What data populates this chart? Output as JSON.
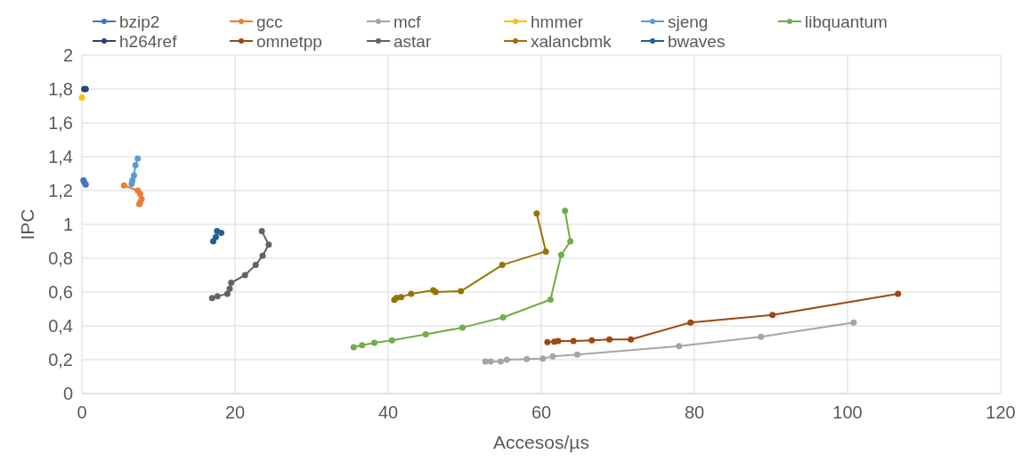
{
  "chart_data": {
    "type": "line",
    "xlabel": "Accesos/µs",
    "ylabel": "IPC",
    "xlim": [
      0,
      120
    ],
    "xticks": [
      0,
      20,
      40,
      60,
      80,
      100,
      120
    ],
    "ylim": [
      0,
      2
    ],
    "yticks": [
      0,
      {
        "value": 0.2,
        "label": "0,2"
      },
      {
        "value": 0.4,
        "label": "0,4"
      },
      {
        "value": 0.6,
        "label": "0,6"
      },
      {
        "value": 0.8,
        "label": "0,8"
      },
      1,
      {
        "value": 1.2,
        "label": "1,2"
      },
      {
        "value": 1.4,
        "label": "1,4"
      },
      {
        "value": 1.6,
        "label": "1,6"
      },
      {
        "value": 1.8,
        "label": "1,8"
      },
      2
    ],
    "grid": true,
    "legend": "top",
    "marker": "circle",
    "line_style": "solid",
    "series": [
      {
        "name": "bzip2",
        "type": "scatter",
        "color": "#4472c4",
        "x": [
          0.2,
          0.3,
          0.5
        ],
        "values": [
          1.26,
          1.25,
          1.235
        ]
      },
      {
        "name": "gcc",
        "color": "#ed7d31",
        "x": [
          5.5,
          7.3,
          7.6,
          7.8,
          7.6,
          7.5
        ],
        "values": [
          1.23,
          1.2,
          1.18,
          1.15,
          1.13,
          1.12
        ]
      },
      {
        "name": "mcf",
        "color": "#a5a5a5",
        "x": [
          52.7,
          53.4,
          54.7,
          55.5,
          58.1,
          60.2,
          61.5,
          64.7,
          78.0,
          88.7,
          100.8
        ],
        "values": [
          0.19,
          0.19,
          0.19,
          0.2,
          0.204,
          0.207,
          0.22,
          0.23,
          0.28,
          0.335,
          0.42
        ]
      },
      {
        "name": "hmmer",
        "color": "#ffc000",
        "x": [
          0
        ],
        "values": [
          1.75
        ]
      },
      {
        "name": "sjeng",
        "color": "#5b9bd5",
        "x": [
          6.5,
          6.6,
          6.8,
          7.0,
          7.3
        ],
        "values": [
          1.24,
          1.26,
          1.29,
          1.35,
          1.39
        ]
      },
      {
        "name": "libquantum",
        "color": "#70ad47",
        "x": [
          35.5,
          36.6,
          38.2,
          40.5,
          44.9,
          49.7,
          55.0,
          61.2,
          62.6,
          63.8,
          63.1
        ],
        "values": [
          0.274,
          0.285,
          0.3,
          0.315,
          0.35,
          0.39,
          0.45,
          0.555,
          0.82,
          0.9,
          1.08
        ]
      },
      {
        "name": "h264ref",
        "type": "scatter",
        "color": "#264478",
        "x": [
          0.3,
          0.5
        ],
        "values": [
          1.8,
          1.8
        ]
      },
      {
        "name": "omnetpp",
        "color": "#9e480e",
        "x": [
          60.8,
          61.7,
          62.2,
          64.2,
          66.6,
          68.9,
          71.7,
          79.5,
          90.2,
          106.6
        ],
        "values": [
          0.304,
          0.306,
          0.31,
          0.31,
          0.315,
          0.32,
          0.32,
          0.42,
          0.465,
          0.59
        ]
      },
      {
        "name": "astar",
        "color": "#636363",
        "x": [
          17.0,
          17.7,
          19.0,
          19.3,
          19.5,
          21.3,
          22.7,
          23.6,
          24.4,
          23.5
        ],
        "values": [
          0.565,
          0.575,
          0.59,
          0.62,
          0.655,
          0.7,
          0.76,
          0.815,
          0.88,
          0.96
        ]
      },
      {
        "name": "xalancbmk",
        "color": "#997300",
        "x": [
          40.8,
          41.1,
          41.7,
          43.0,
          45.9,
          46.2,
          49.5,
          54.9,
          60.6,
          59.4
        ],
        "values": [
          0.554,
          0.566,
          0.57,
          0.59,
          0.61,
          0.6,
          0.605,
          0.76,
          0.84,
          1.065
        ]
      },
      {
        "name": "bwaves",
        "type": "scatter",
        "color": "#255e91",
        "x": [
          17.15,
          17.5,
          17.65,
          18.2
        ],
        "values": [
          0.9,
          0.925,
          0.96,
          0.95
        ]
      }
    ]
  }
}
